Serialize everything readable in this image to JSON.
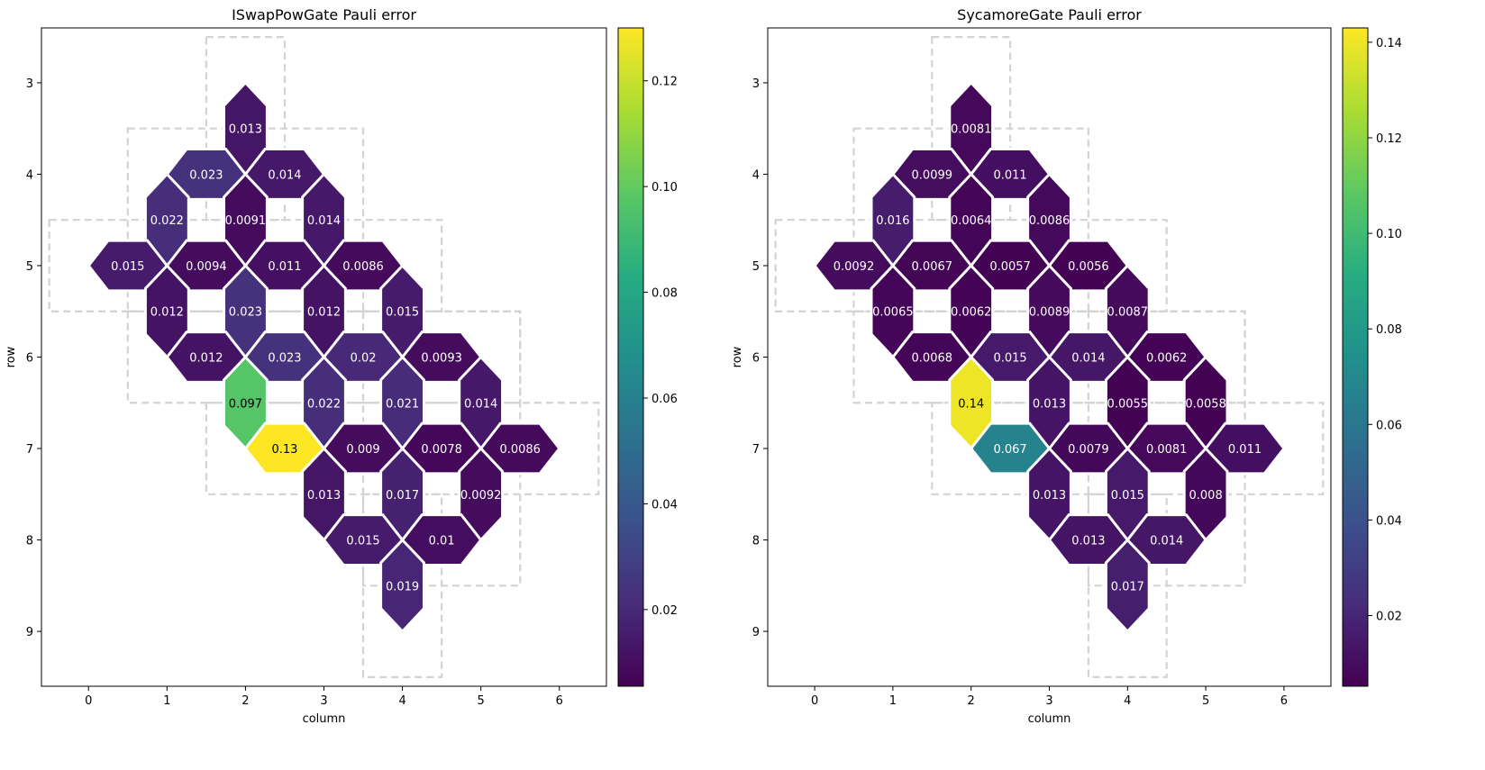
{
  "chart_data": [
    {
      "type": "heatmap",
      "title": "ISwapPowGate Pauli error",
      "xlabel": "column",
      "ylabel": "row",
      "xlim": [
        -0.6,
        6.6
      ],
      "ylim": [
        9.6,
        2.4
      ],
      "xticks": [
        0,
        1,
        2,
        3,
        4,
        5,
        6
      ],
      "yticks": [
        3,
        4,
        5,
        6,
        7,
        8,
        9
      ],
      "colorbar": {
        "min": 0.0055,
        "max": 0.13,
        "ticks": [
          "0.02",
          "0.04",
          "0.06",
          "0.08",
          "0.10",
          "0.12"
        ],
        "tick_values": [
          0.02,
          0.04,
          0.06,
          0.08,
          0.1,
          0.12
        ]
      },
      "qubits": [
        [
          3,
          2
        ],
        [
          4,
          1
        ],
        [
          4,
          2
        ],
        [
          4,
          3
        ],
        [
          5,
          0
        ],
        [
          5,
          1
        ],
        [
          5,
          2
        ],
        [
          5,
          3
        ],
        [
          5,
          4
        ],
        [
          6,
          1
        ],
        [
          6,
          2
        ],
        [
          6,
          3
        ],
        [
          6,
          4
        ],
        [
          6,
          5
        ],
        [
          7,
          2
        ],
        [
          7,
          3
        ],
        [
          7,
          4
        ],
        [
          7,
          5
        ],
        [
          7,
          6
        ],
        [
          8,
          3
        ],
        [
          8,
          4
        ],
        [
          8,
          5
        ],
        [
          9,
          4
        ]
      ],
      "couplers": [
        {
          "row": 3.5,
          "col": 2.0,
          "value": 0.013,
          "label": "0.013"
        },
        {
          "row": 4.0,
          "col": 1.5,
          "value": 0.023,
          "label": "0.023"
        },
        {
          "row": 4.0,
          "col": 2.5,
          "value": 0.014,
          "label": "0.014"
        },
        {
          "row": 4.5,
          "col": 1.0,
          "value": 0.022,
          "label": "0.022"
        },
        {
          "row": 4.5,
          "col": 2.0,
          "value": 0.0091,
          "label": "0.0091"
        },
        {
          "row": 4.5,
          "col": 3.0,
          "value": 0.014,
          "label": "0.014"
        },
        {
          "row": 5.0,
          "col": 0.5,
          "value": 0.015,
          "label": "0.015"
        },
        {
          "row": 5.0,
          "col": 1.5,
          "value": 0.0094,
          "label": "0.0094"
        },
        {
          "row": 5.0,
          "col": 2.5,
          "value": 0.011,
          "label": "0.011"
        },
        {
          "row": 5.0,
          "col": 3.5,
          "value": 0.0086,
          "label": "0.0086"
        },
        {
          "row": 5.5,
          "col": 1.0,
          "value": 0.012,
          "label": "0.012"
        },
        {
          "row": 5.5,
          "col": 2.0,
          "value": 0.023,
          "label": "0.023"
        },
        {
          "row": 5.5,
          "col": 3.0,
          "value": 0.012,
          "label": "0.012"
        },
        {
          "row": 5.5,
          "col": 4.0,
          "value": 0.015,
          "label": "0.015"
        },
        {
          "row": 6.0,
          "col": 1.5,
          "value": 0.012,
          "label": "0.012"
        },
        {
          "row": 6.0,
          "col": 2.5,
          "value": 0.023,
          "label": "0.023"
        },
        {
          "row": 6.0,
          "col": 3.5,
          "value": 0.02,
          "label": "0.02"
        },
        {
          "row": 6.0,
          "col": 4.5,
          "value": 0.0093,
          "label": "0.0093"
        },
        {
          "row": 6.5,
          "col": 2.0,
          "value": 0.097,
          "label": "0.097"
        },
        {
          "row": 6.5,
          "col": 3.0,
          "value": 0.022,
          "label": "0.022"
        },
        {
          "row": 6.5,
          "col": 4.0,
          "value": 0.021,
          "label": "0.021"
        },
        {
          "row": 6.5,
          "col": 5.0,
          "value": 0.014,
          "label": "0.014"
        },
        {
          "row": 7.0,
          "col": 2.5,
          "value": 0.13,
          "label": "0.13"
        },
        {
          "row": 7.0,
          "col": 3.5,
          "value": 0.009,
          "label": "0.009"
        },
        {
          "row": 7.0,
          "col": 4.5,
          "value": 0.0078,
          "label": "0.0078"
        },
        {
          "row": 7.0,
          "col": 5.5,
          "value": 0.0086,
          "label": "0.0086"
        },
        {
          "row": 7.5,
          "col": 3.0,
          "value": 0.013,
          "label": "0.013"
        },
        {
          "row": 7.5,
          "col": 4.0,
          "value": 0.017,
          "label": "0.017"
        },
        {
          "row": 7.5,
          "col": 5.0,
          "value": 0.0092,
          "label": "0.0092"
        },
        {
          "row": 8.0,
          "col": 3.5,
          "value": 0.015,
          "label": "0.015"
        },
        {
          "row": 8.0,
          "col": 4.5,
          "value": 0.01,
          "label": "0.01"
        },
        {
          "row": 8.5,
          "col": 4.0,
          "value": 0.019,
          "label": "0.019"
        }
      ]
    },
    {
      "type": "heatmap",
      "title": "SycamoreGate Pauli error",
      "xlabel": "column",
      "ylabel": "row",
      "xlim": [
        -0.6,
        6.6
      ],
      "ylim": [
        9.6,
        2.4
      ],
      "xticks": [
        0,
        1,
        2,
        3,
        4,
        5,
        6
      ],
      "yticks": [
        3,
        4,
        5,
        6,
        7,
        8,
        9
      ],
      "colorbar": {
        "min": 0.0052,
        "max": 0.143,
        "ticks": [
          "0.02",
          "0.04",
          "0.06",
          "0.08",
          "0.10",
          "0.12",
          "0.14"
        ],
        "tick_values": [
          0.02,
          0.04,
          0.06,
          0.08,
          0.1,
          0.12,
          0.14
        ]
      },
      "qubits": [
        [
          3,
          2
        ],
        [
          4,
          1
        ],
        [
          4,
          2
        ],
        [
          4,
          3
        ],
        [
          5,
          0
        ],
        [
          5,
          1
        ],
        [
          5,
          2
        ],
        [
          5,
          3
        ],
        [
          5,
          4
        ],
        [
          6,
          1
        ],
        [
          6,
          2
        ],
        [
          6,
          3
        ],
        [
          6,
          4
        ],
        [
          6,
          5
        ],
        [
          7,
          2
        ],
        [
          7,
          3
        ],
        [
          7,
          4
        ],
        [
          7,
          5
        ],
        [
          7,
          6
        ],
        [
          8,
          3
        ],
        [
          8,
          4
        ],
        [
          8,
          5
        ],
        [
          9,
          4
        ]
      ],
      "couplers": [
        {
          "row": 3.5,
          "col": 2.0,
          "value": 0.0081,
          "label": "0.0081"
        },
        {
          "row": 4.0,
          "col": 1.5,
          "value": 0.0099,
          "label": "0.0099"
        },
        {
          "row": 4.0,
          "col": 2.5,
          "value": 0.011,
          "label": "0.011"
        },
        {
          "row": 4.5,
          "col": 1.0,
          "value": 0.016,
          "label": "0.016"
        },
        {
          "row": 4.5,
          "col": 2.0,
          "value": 0.0064,
          "label": "0.0064"
        },
        {
          "row": 4.5,
          "col": 3.0,
          "value": 0.0086,
          "label": "0.0086"
        },
        {
          "row": 5.0,
          "col": 0.5,
          "value": 0.0092,
          "label": "0.0092"
        },
        {
          "row": 5.0,
          "col": 1.5,
          "value": 0.0067,
          "label": "0.0067"
        },
        {
          "row": 5.0,
          "col": 2.5,
          "value": 0.0057,
          "label": "0.0057"
        },
        {
          "row": 5.0,
          "col": 3.5,
          "value": 0.0056,
          "label": "0.0056"
        },
        {
          "row": 5.5,
          "col": 1.0,
          "value": 0.0065,
          "label": "0.0065"
        },
        {
          "row": 5.5,
          "col": 2.0,
          "value": 0.0062,
          "label": "0.0062"
        },
        {
          "row": 5.5,
          "col": 3.0,
          "value": 0.0089,
          "label": "0.0089"
        },
        {
          "row": 5.5,
          "col": 4.0,
          "value": 0.0087,
          "label": "0.0087"
        },
        {
          "row": 6.0,
          "col": 1.5,
          "value": 0.0068,
          "label": "0.0068"
        },
        {
          "row": 6.0,
          "col": 2.5,
          "value": 0.015,
          "label": "0.015"
        },
        {
          "row": 6.0,
          "col": 3.5,
          "value": 0.014,
          "label": "0.014"
        },
        {
          "row": 6.0,
          "col": 4.5,
          "value": 0.0062,
          "label": "0.0062"
        },
        {
          "row": 6.5,
          "col": 2.0,
          "value": 0.14,
          "label": "0.14"
        },
        {
          "row": 6.5,
          "col": 3.0,
          "value": 0.013,
          "label": "0.013"
        },
        {
          "row": 6.5,
          "col": 4.0,
          "value": 0.0055,
          "label": "0.0055"
        },
        {
          "row": 6.5,
          "col": 5.0,
          "value": 0.0058,
          "label": "0.0058"
        },
        {
          "row": 7.0,
          "col": 2.5,
          "value": 0.067,
          "label": "0.067"
        },
        {
          "row": 7.0,
          "col": 3.5,
          "value": 0.0079,
          "label": "0.0079"
        },
        {
          "row": 7.0,
          "col": 4.5,
          "value": 0.0081,
          "label": "0.0081"
        },
        {
          "row": 7.0,
          "col": 5.5,
          "value": 0.011,
          "label": "0.011"
        },
        {
          "row": 7.5,
          "col": 3.0,
          "value": 0.013,
          "label": "0.013"
        },
        {
          "row": 7.5,
          "col": 4.0,
          "value": 0.015,
          "label": "0.015"
        },
        {
          "row": 7.5,
          "col": 5.0,
          "value": 0.008,
          "label": "0.008"
        },
        {
          "row": 8.0,
          "col": 3.5,
          "value": 0.013,
          "label": "0.013"
        },
        {
          "row": 8.0,
          "col": 4.5,
          "value": 0.014,
          "label": "0.014"
        },
        {
          "row": 8.5,
          "col": 4.0,
          "value": 0.017,
          "label": "0.017"
        }
      ]
    }
  ]
}
